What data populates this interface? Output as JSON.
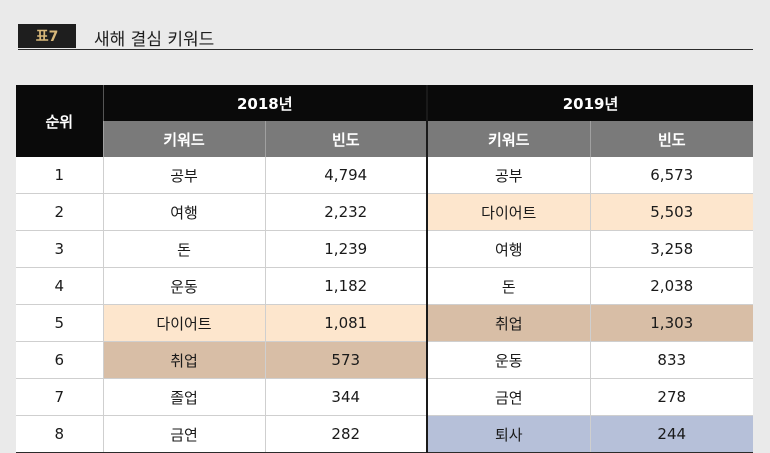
{
  "header": {
    "tag": "표7",
    "title": "새해 결심 키워드"
  },
  "table": {
    "rank_header": "순위",
    "years": [
      "2018년",
      "2019년"
    ],
    "sub_headers": [
      "키워드",
      "빈도",
      "키워드",
      "빈도"
    ],
    "rows": [
      {
        "rank": "1",
        "kw2018": "공부",
        "f2018": "4,794",
        "kw2019": "공부",
        "f2019": "6,573"
      },
      {
        "rank": "2",
        "kw2018": "여행",
        "f2018": "2,232",
        "kw2019": "다이어트",
        "f2019": "5,503"
      },
      {
        "rank": "3",
        "kw2018": "돈",
        "f2018": "1,239",
        "kw2019": "여행",
        "f2019": "3,258"
      },
      {
        "rank": "4",
        "kw2018": "운동",
        "f2018": "1,182",
        "kw2019": "돈",
        "f2019": "2,038"
      },
      {
        "rank": "5",
        "kw2018": "다이어트",
        "f2018": "1,081",
        "kw2019": "취업",
        "f2019": "1,303"
      },
      {
        "rank": "6",
        "kw2018": "취업",
        "f2018": "573",
        "kw2019": "운동",
        "f2019": "833"
      },
      {
        "rank": "7",
        "kw2018": "졸업",
        "f2018": "344",
        "kw2019": "금연",
        "f2019": "278"
      },
      {
        "rank": "8",
        "kw2018": "금연",
        "f2018": "282",
        "kw2019": "퇴사",
        "f2019": "244"
      }
    ]
  },
  "highlight_colors": {
    "diet": "#fde6cd",
    "job": "#d8bea6",
    "quit": "#b6c0d9"
  }
}
